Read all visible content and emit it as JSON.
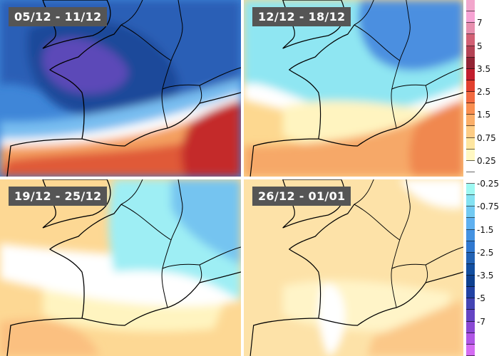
{
  "panels": [
    {
      "title": "05/12 - 11/12",
      "background": "#3f86d8",
      "blobs": [
        {
          "color": "#2a5fb6",
          "shape": "north"
        },
        {
          "color": "#1d4a9a",
          "shape": "center"
        },
        {
          "color": "#5b48b8",
          "shape": "core"
        },
        {
          "color": "#78bdf0",
          "shape": "southband"
        },
        {
          "color": "#ffffff",
          "shape": "zero"
        },
        {
          "color": "#f4a060",
          "shape": "south"
        },
        {
          "color": "#e05a38",
          "shape": "southdeep"
        },
        {
          "color": "#c42c2c",
          "shape": "italy"
        }
      ]
    },
    {
      "title": "12/12 - 18/12",
      "background": "#fdd890",
      "blobs": [
        {
          "color": "#ffffff",
          "shape": "midband"
        },
        {
          "color": "#8fe6f2",
          "shape": "north"
        },
        {
          "color": "#4b8fe0",
          "shape": "northdeep"
        },
        {
          "color": "#fff4c0",
          "shape": "centerlight"
        },
        {
          "color": "#f6a868",
          "shape": "south"
        },
        {
          "color": "#f08850",
          "shape": "italy"
        }
      ]
    },
    {
      "title": "19/12 - 25/12",
      "background": "#fdd894",
      "blobs": [
        {
          "color": "#fff4c0",
          "shape": "centerlight"
        },
        {
          "color": "#ffffff",
          "shape": "midband"
        },
        {
          "color": "#9eeef4",
          "shape": "northeast"
        },
        {
          "color": "#74c4f0",
          "shape": "northeastdeep"
        },
        {
          "color": "#fbc080",
          "shape": "southwest"
        }
      ]
    },
    {
      "title": "26/12 - 01/01",
      "background": "#fde2a8",
      "blobs": [
        {
          "color": "#fff4c8",
          "shape": "centerlight"
        },
        {
          "color": "#ffffff",
          "shape": "whitepatch"
        },
        {
          "color": "#ffffff",
          "shape": "northeastwhite"
        },
        {
          "color": "#fbc888",
          "shape": "southeast"
        }
      ]
    }
  ],
  "legend": {
    "labels": [
      "7",
      "5",
      "3.5",
      "2.5",
      "1.5",
      "0.75",
      "0.25",
      "-0.25",
      "-0.75",
      "-1.5",
      "-2.5",
      "-3.5",
      "-5",
      "-7"
    ],
    "colors": [
      "#f2a6cc",
      "#f7a3d4",
      "#e78fae",
      "#d26074",
      "#b44254",
      "#922434",
      "#c21e2e",
      "#e2402e",
      "#f26a40",
      "#f98f50",
      "#fbae68",
      "#fdcd86",
      "#fee6a0",
      "#fff8c2",
      "#ffffff",
      "#ffffff",
      "#9ef8f2",
      "#84e2f2",
      "#72caf2",
      "#5eb0f0",
      "#4492e2",
      "#3078d0",
      "#2262b4",
      "#124ea0",
      "#0e4090",
      "#2242a4",
      "#4444b4",
      "#6444c4",
      "#8a48d4",
      "#b056e6",
      "#d46cf2"
    ]
  }
}
